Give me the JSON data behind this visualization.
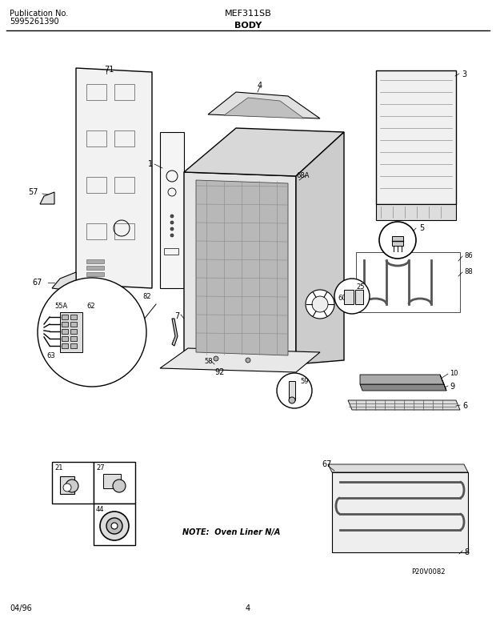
{
  "title_left_line1": "Publication No.",
  "title_left_line2": "5995261390",
  "title_center": "MEF311SB",
  "title_center2": "BODY",
  "footer_left": "04/96",
  "footer_center": "4",
  "note_text": "NOTE:  Oven Liner N/A",
  "product_code": "P20V0082",
  "bg_color": "#ffffff",
  "fig_width": 6.2,
  "fig_height": 7.92,
  "dpi": 100
}
